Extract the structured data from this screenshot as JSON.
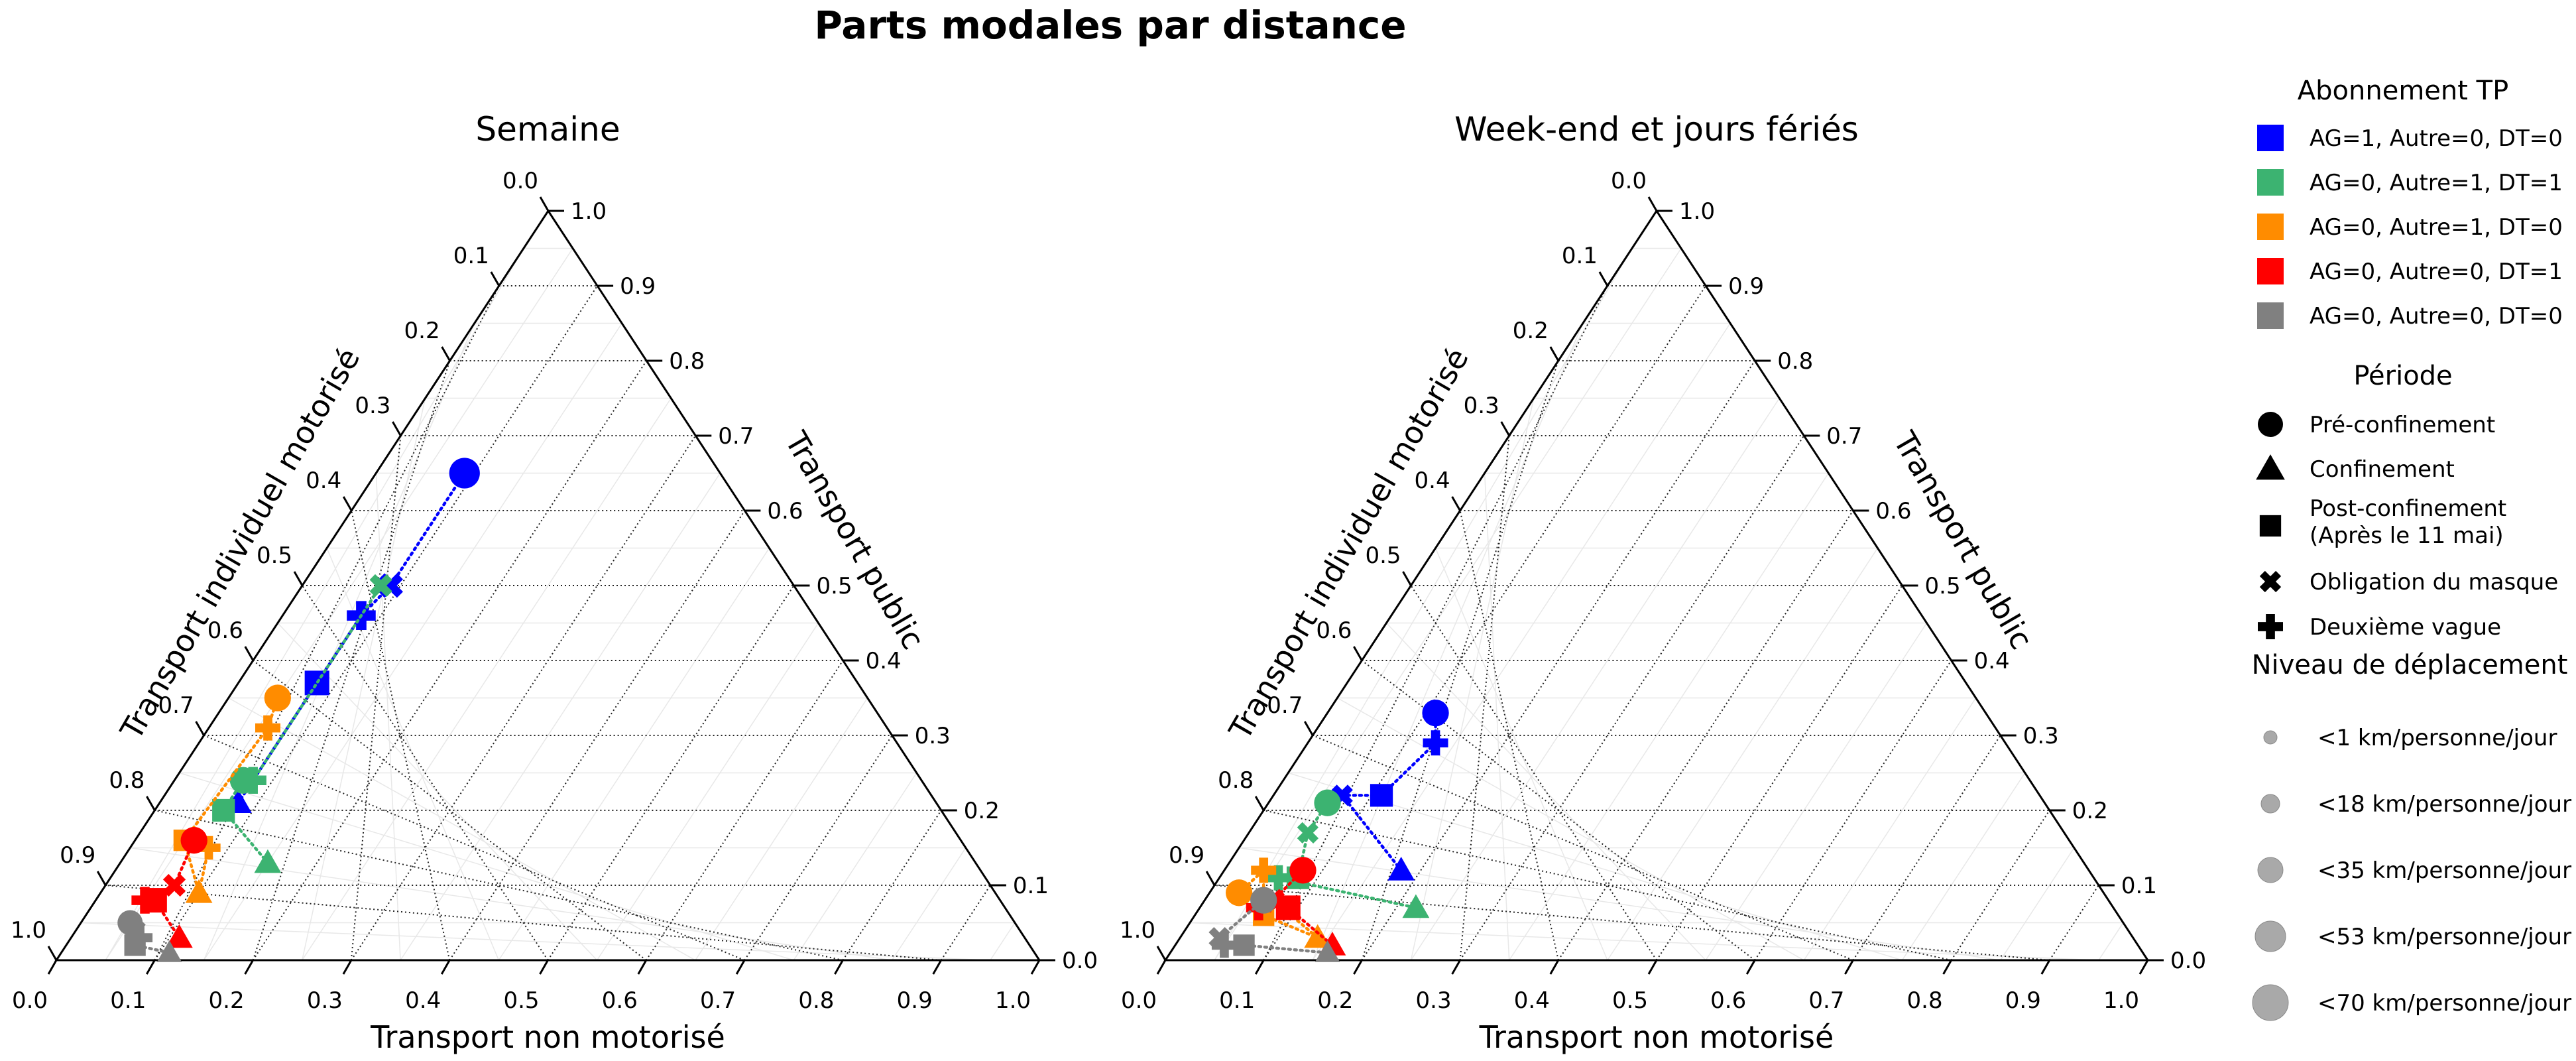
{
  "title": "Parts modales par distance",
  "legend": {
    "abonnement_title": "Abonnement TP",
    "abonnements": [
      {
        "label": "AG=1, Autre=0, DT=0",
        "color": "#0000ff"
      },
      {
        "label": "AG=0, Autre=1, DT=1",
        "color": "#3cb371"
      },
      {
        "label": "AG=0, Autre=1, DT=0",
        "color": "#ff8c00"
      },
      {
        "label": "AG=0, Autre=0, DT=1",
        "color": "#ff0000"
      },
      {
        "label": "AG=0, Autre=0, DT=0",
        "color": "#808080"
      }
    ],
    "periode_title": "Période",
    "periodes": [
      {
        "label": "Pré-confinement",
        "marker": "circle"
      },
      {
        "label": "Confinement",
        "marker": "triangle"
      },
      {
        "label": "Post-confinement",
        "label2": "(Après le 11 mai)",
        "marker": "square"
      },
      {
        "label": "Obligation du masque",
        "marker": "x"
      },
      {
        "label": "Deuxième vague",
        "marker": "plus"
      }
    ],
    "niveau_title": "Niveau de déplacement",
    "niveaux": [
      {
        "label": "<1 km/personne/jour",
        "size": 1
      },
      {
        "label": "<18 km/personne/jour",
        "size": 18
      },
      {
        "label": "<35 km/personne/jour",
        "size": 35
      },
      {
        "label": "<53 km/personne/jour",
        "size": 53
      },
      {
        "label": "<70 km/personne/jour",
        "size": 70
      }
    ]
  },
  "chart_data": [
    {
      "type": "scatter",
      "subtype": "ternary",
      "title": "Semaine",
      "axes": {
        "bottom_label": "Transport non motorisé",
        "left_label": "Transport individuel motorisé",
        "right_label": "Transport public",
        "ticks": [
          "0.0",
          "0.1",
          "0.2",
          "0.3",
          "0.4",
          "0.5",
          "0.6",
          "0.7",
          "0.8",
          "0.9",
          "1.0"
        ],
        "grid": true
      },
      "series": [
        {
          "color": "#0000ff",
          "points": [
            {
              "period": "Pré-confinement",
              "nm": 0.09,
              "tp": 0.65,
              "km": 45
            },
            {
              "period": "Obligation du masque",
              "nm": 0.09,
              "tp": 0.5,
              "km": 38
            },
            {
              "period": "Deuxième vague",
              "nm": 0.08,
              "tp": 0.46,
              "km": 38
            },
            {
              "period": "Post-confinement",
              "nm": 0.08,
              "tp": 0.37,
              "km": 38
            },
            {
              "period": "Confinement",
              "nm": 0.08,
              "tp": 0.21,
              "km": 20
            }
          ]
        },
        {
          "color": "#3cb371",
          "points": [
            {
              "period": "Obligation du masque",
              "nm": 0.08,
              "tp": 0.5,
              "km": 30
            },
            {
              "period": "Deuxième vague",
              "nm": 0.08,
              "tp": 0.24,
              "km": 30
            },
            {
              "period": "Pré-confinement",
              "nm": 0.07,
              "tp": 0.24,
              "km": 30
            },
            {
              "period": "Post-confinement",
              "nm": 0.07,
              "tp": 0.2,
              "km": 30
            },
            {
              "period": "Confinement",
              "nm": 0.15,
              "tp": 0.13,
              "km": 20
            }
          ]
        },
        {
          "color": "#ff8c00",
          "points": [
            {
              "period": "Pré-confinement",
              "nm": 0.05,
              "tp": 0.35,
              "km": 30
            },
            {
              "period": "Deuxième vague",
              "nm": 0.06,
              "tp": 0.31,
              "km": 25
            },
            {
              "period": "Post-confinement",
              "nm": 0.05,
              "tp": 0.16,
              "km": 25
            },
            {
              "period": "Confinement",
              "nm": 0.1,
              "tp": 0.09,
              "km": 20
            },
            {
              "period": "Deuxième vague",
              "nm": 0.08,
              "tp": 0.15,
              "km": 20
            }
          ]
        },
        {
          "color": "#ff0000",
          "points": [
            {
              "period": "Pré-confinement",
              "nm": 0.06,
              "tp": 0.16,
              "km": 30
            },
            {
              "period": "Obligation du masque",
              "nm": 0.07,
              "tp": 0.1,
              "km": 30
            },
            {
              "period": "Deuxième vague",
              "nm": 0.05,
              "tp": 0.08,
              "km": 30
            },
            {
              "period": "Post-confinement",
              "nm": 0.06,
              "tp": 0.08,
              "km": 38
            },
            {
              "period": "Confinement",
              "nm": 0.11,
              "tp": 0.03,
              "km": 20
            }
          ]
        },
        {
          "color": "#808080",
          "points": [
            {
              "period": "Pré-confinement",
              "nm": 0.05,
              "tp": 0.05,
              "km": 25
            },
            {
              "period": "Obligation du masque",
              "nm": 0.06,
              "tp": 0.04,
              "km": 25
            },
            {
              "period": "Deuxième vague",
              "nm": 0.07,
              "tp": 0.03,
              "km": 25
            },
            {
              "period": "Post-confinement",
              "nm": 0.07,
              "tp": 0.02,
              "km": 25
            },
            {
              "period": "Confinement",
              "nm": 0.11,
              "tp": 0.01,
              "km": 15
            }
          ]
        }
      ]
    },
    {
      "type": "scatter",
      "subtype": "ternary",
      "title": "Week-end et jours fériés",
      "axes": {
        "bottom_label": "Transport non motorisé",
        "left_label": "Transport individuel motorisé",
        "right_label": "Transport public",
        "ticks": [
          "0.0",
          "0.1",
          "0.2",
          "0.3",
          "0.4",
          "0.5",
          "0.6",
          "0.7",
          "0.8",
          "0.9",
          "1.0"
        ],
        "grid": true
      },
      "series": [
        {
          "color": "#0000ff",
          "points": [
            {
              "period": "Pré-confinement",
              "nm": 0.11,
              "tp": 0.33,
              "km": 30
            },
            {
              "period": "Deuxième vague",
              "nm": 0.13,
              "tp": 0.29,
              "km": 25
            },
            {
              "period": "Post-confinement",
              "nm": 0.11,
              "tp": 0.22,
              "km": 30
            },
            {
              "period": "Obligation du masque",
              "nm": 0.07,
              "tp": 0.22,
              "km": 25
            },
            {
              "period": "Confinement",
              "nm": 0.18,
              "tp": 0.12,
              "km": 20
            }
          ]
        },
        {
          "color": "#3cb371",
          "points": [
            {
              "period": "Pré-confinement",
              "nm": 0.06,
              "tp": 0.21,
              "km": 30
            },
            {
              "period": "Obligation du masque",
              "nm": 0.06,
              "tp": 0.17,
              "km": 25
            },
            {
              "period": "Post-confinement",
              "nm": 0.08,
              "tp": 0.11,
              "km": 30
            },
            {
              "period": "Deuxième vague",
              "nm": 0.06,
              "tp": 0.11,
              "km": 25
            },
            {
              "period": "Confinement",
              "nm": 0.22,
              "tp": 0.07,
              "km": 20
            }
          ]
        },
        {
          "color": "#ff8c00",
          "points": [
            {
              "period": "Pré-confinement",
              "nm": 0.03,
              "tp": 0.09,
              "km": 30
            },
            {
              "period": "Deuxième vague",
              "nm": 0.04,
              "tp": 0.12,
              "km": 25
            },
            {
              "period": "Post-confinement",
              "nm": 0.07,
              "tp": 0.06,
              "km": 25
            },
            {
              "period": "Confinement",
              "nm": 0.14,
              "tp": 0.03,
              "km": 20
            },
            {
              "period": "Obligation du masque",
              "nm": 0.07,
              "tp": 0.08,
              "km": 25
            }
          ]
        },
        {
          "color": "#ff0000",
          "points": [
            {
              "period": "Pré-confinement",
              "nm": 0.08,
              "tp": 0.12,
              "km": 30
            },
            {
              "period": "Obligation du masque",
              "nm": 0.07,
              "tp": 0.08,
              "km": 30
            },
            {
              "period": "Deuxième vague",
              "nm": 0.06,
              "tp": 0.07,
              "km": 25
            },
            {
              "period": "Post-confinement",
              "nm": 0.09,
              "tp": 0.07,
              "km": 38
            },
            {
              "period": "Confinement",
              "nm": 0.16,
              "tp": 0.02,
              "km": 20
            }
          ]
        },
        {
          "color": "#808080",
          "points": [
            {
              "period": "Pré-confinement",
              "nm": 0.06,
              "tp": 0.08,
              "km": 30
            },
            {
              "period": "Obligation du masque",
              "nm": 0.04,
              "tp": 0.03,
              "km": 25
            },
            {
              "period": "Deuxième vague",
              "nm": 0.05,
              "tp": 0.02,
              "km": 25
            },
            {
              "period": "Post-confinement",
              "nm": 0.07,
              "tp": 0.02,
              "km": 25
            },
            {
              "period": "Confinement",
              "nm": 0.16,
              "tp": 0.01,
              "km": 15
            }
          ]
        }
      ]
    }
  ]
}
